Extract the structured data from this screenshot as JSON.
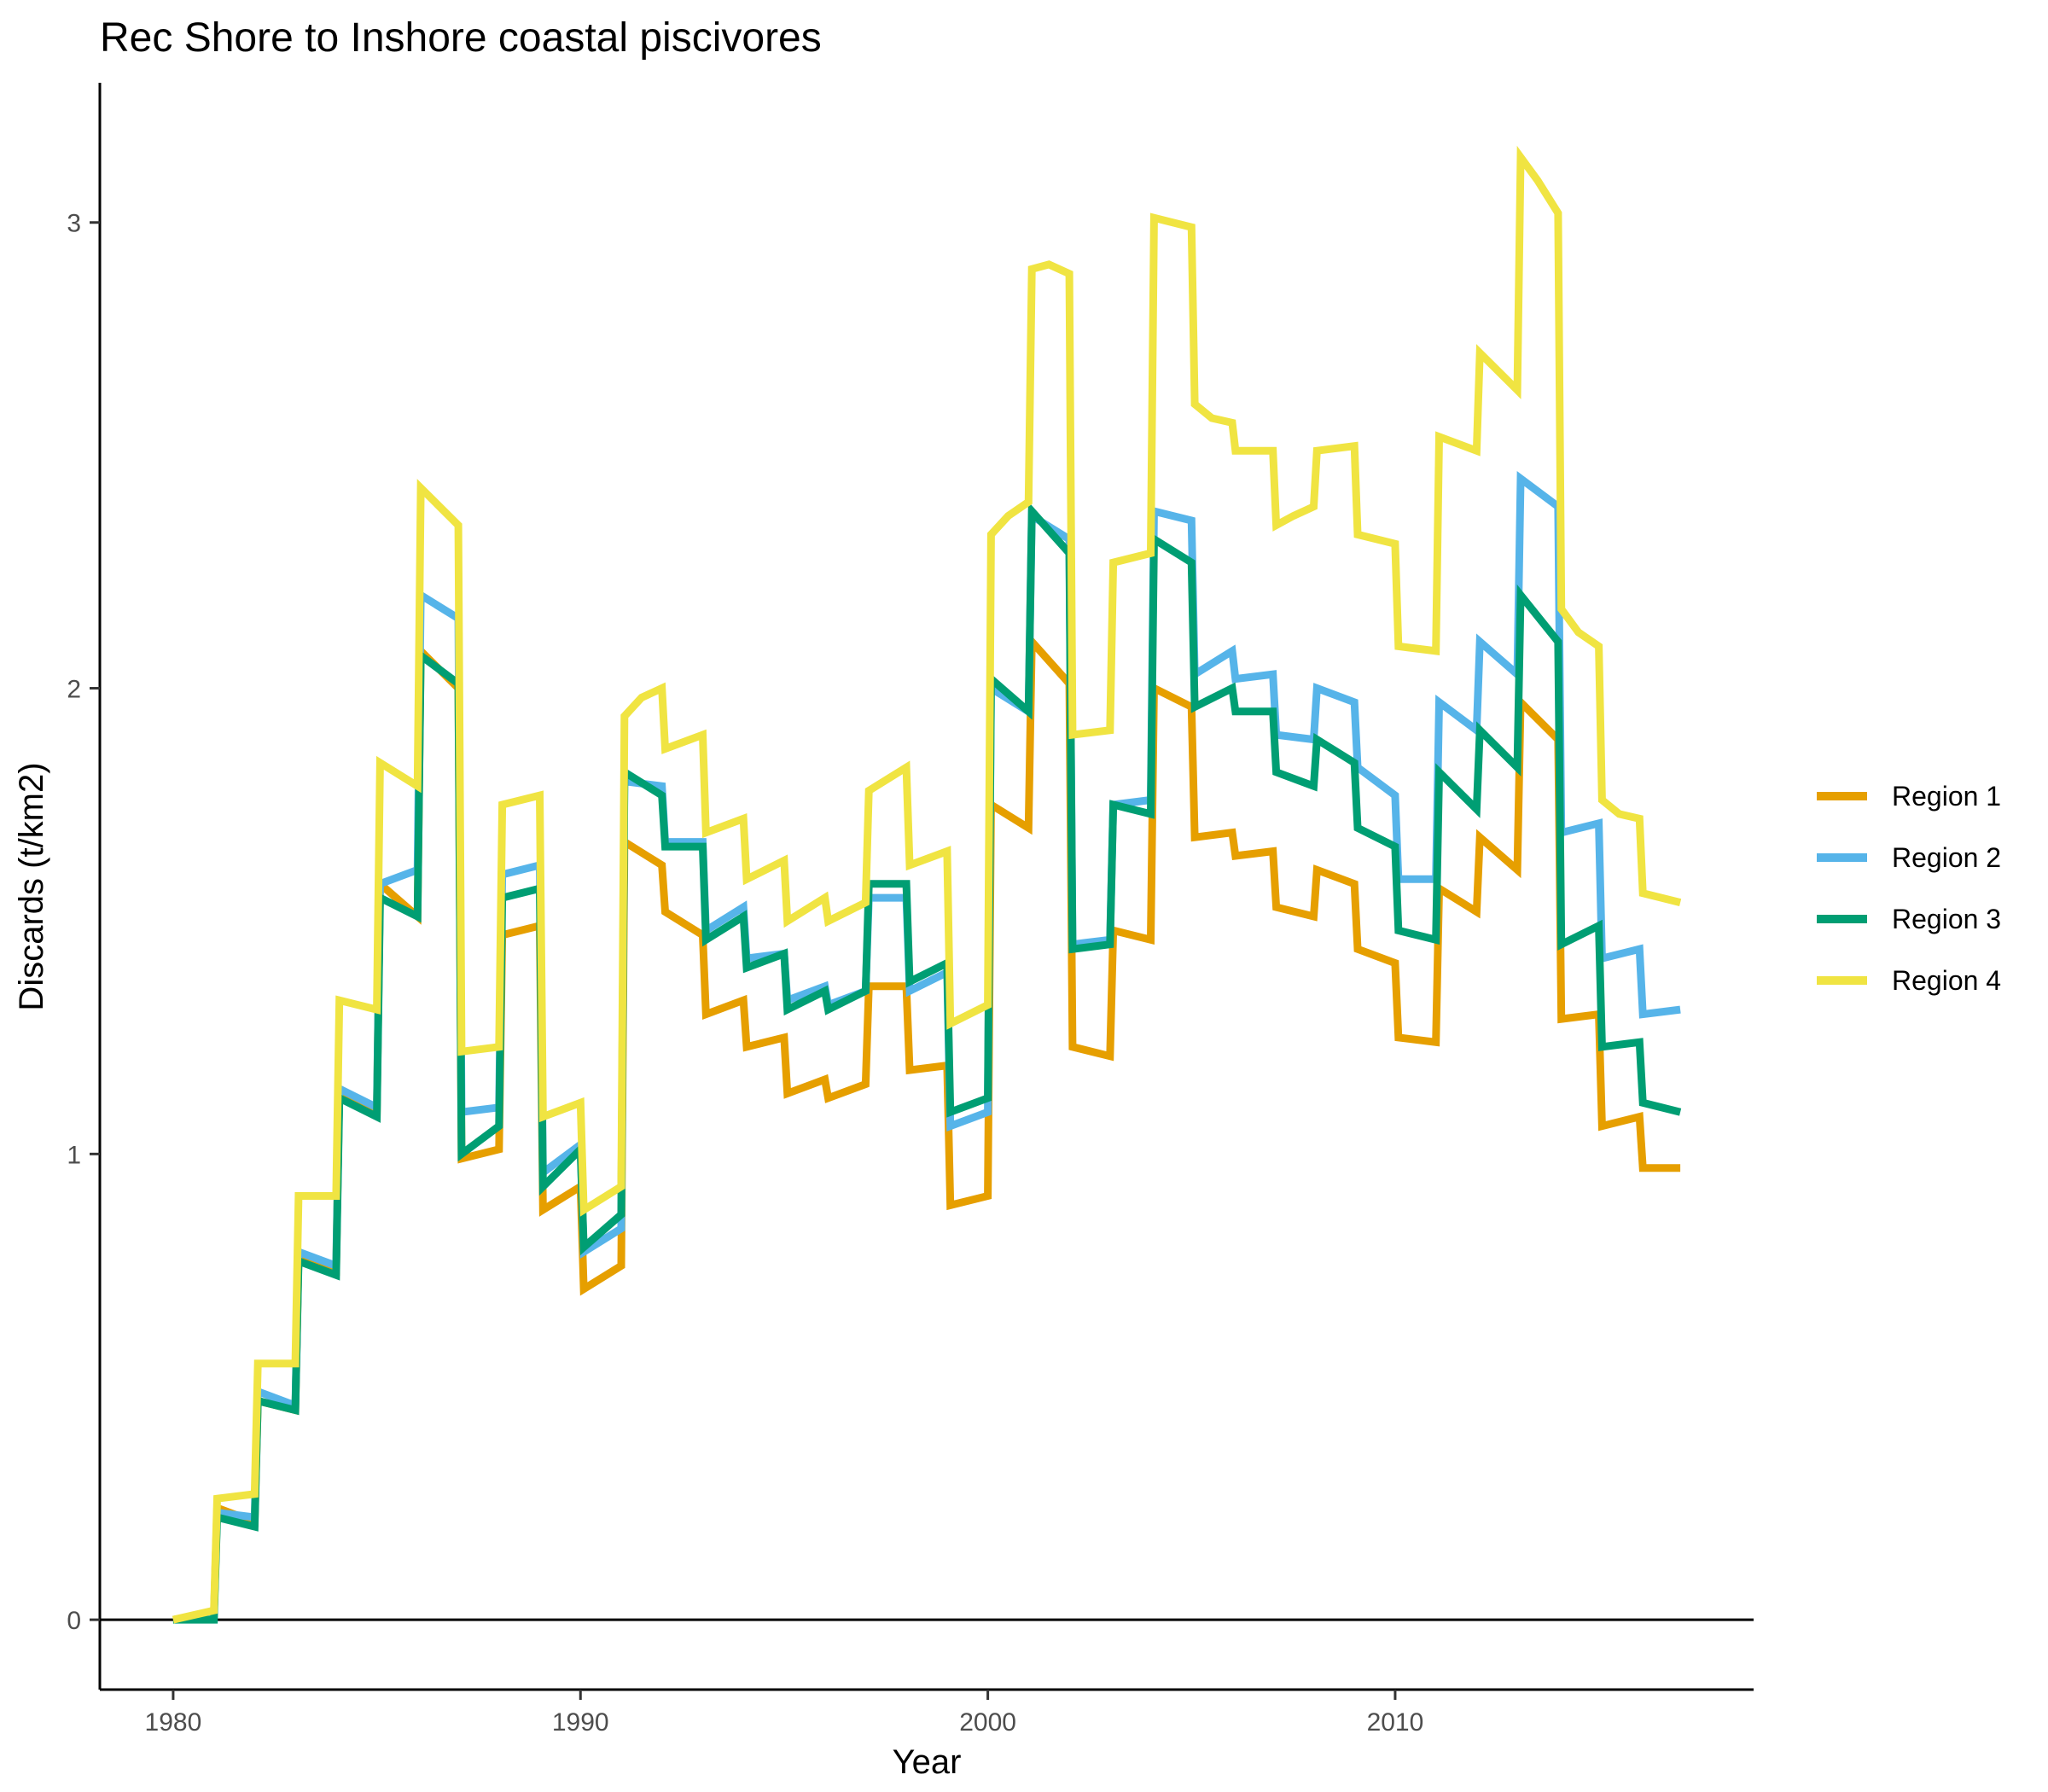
{
  "chart_data": {
    "type": "line",
    "title": "Rec Shore to Inshore coastal piscivores",
    "xlabel": "Year",
    "ylabel": "Discards (t/km2)",
    "xlim": [
      1978.2,
      2018.8
    ],
    "ylim": [
      -0.15,
      3.3
    ],
    "xticks": [
      1980,
      1990,
      2000,
      2010
    ],
    "yticks": [
      0,
      1,
      2,
      3
    ],
    "xtick_labels": [
      "1980",
      "1990",
      "2000",
      "2010"
    ],
    "ytick_labels": [
      "0",
      "1",
      "2",
      "3"
    ],
    "hline_y": 0,
    "grid": false,
    "legend_position": "right",
    "series": [
      {
        "name": "Region 1",
        "color": "#E69F00",
        "x": [
          1980.0,
          1981.0,
          1981.08,
          1982.0,
          1982.08,
          1983.0,
          1983.08,
          1984.0,
          1984.08,
          1985.0,
          1985.08,
          1986.0,
          1986.08,
          1987.0,
          1987.08,
          1988.0,
          1988.08,
          1989.0,
          1989.08,
          1990.0,
          1990.08,
          1991.0,
          1991.08,
          1992.0,
          1992.08,
          1993.0,
          1993.08,
          1994.0,
          1994.08,
          1995.0,
          1995.08,
          1996.0,
          1996.08,
          1997.0,
          1997.08,
          1998.0,
          1998.08,
          1999.0,
          1999.08,
          2000.0,
          2000.08,
          2001.0,
          2001.08,
          2002.0,
          2002.08,
          2003.0,
          2003.08,
          2004.0,
          2004.08,
          2005.0,
          2005.08,
          2006.0,
          2006.08,
          2007.0,
          2007.08,
          2008.0,
          2008.08,
          2009.0,
          2009.08,
          2010.0,
          2010.08,
          2011.0,
          2011.08,
          2012.0,
          2012.08,
          2013.0,
          2013.08,
          2014.0,
          2014.08,
          2015.0,
          2015.08,
          2016.0,
          2016.08,
          2017.0
        ],
        "y": [
          0.0,
          0.01,
          0.24,
          0.21,
          0.47,
          0.45,
          0.78,
          0.75,
          1.14,
          1.09,
          1.58,
          1.51,
          2.08,
          2.0,
          0.99,
          1.01,
          1.47,
          1.49,
          0.88,
          0.93,
          0.71,
          0.76,
          1.67,
          1.62,
          1.52,
          1.47,
          1.3,
          1.33,
          1.23,
          1.25,
          1.13,
          1.16,
          1.12,
          1.15,
          1.36,
          1.36,
          1.18,
          1.19,
          0.89,
          0.91,
          1.75,
          1.7,
          2.1,
          2.01,
          1.23,
          1.21,
          1.48,
          1.46,
          2.0,
          1.96,
          1.68,
          1.69,
          1.64,
          1.65,
          1.53,
          1.51,
          1.61,
          1.58,
          1.44,
          1.41,
          1.25,
          1.24,
          1.57,
          1.52,
          1.68,
          1.61,
          1.97,
          1.89,
          1.29,
          1.3,
          1.06,
          1.08,
          0.97,
          0.97
        ]
      },
      {
        "name": "Region 2",
        "color": "#56B4E9",
        "x": [
          1980.0,
          1981.0,
          1981.08,
          1982.0,
          1982.08,
          1983.0,
          1983.08,
          1984.0,
          1984.08,
          1985.0,
          1985.08,
          1986.0,
          1986.08,
          1987.0,
          1987.08,
          1988.0,
          1988.08,
          1989.0,
          1989.08,
          1990.0,
          1990.08,
          1991.0,
          1991.08,
          1992.0,
          1992.08,
          1993.0,
          1993.08,
          1994.0,
          1994.08,
          1995.0,
          1995.08,
          1996.0,
          1996.08,
          1997.0,
          1997.08,
          1998.0,
          1998.08,
          1999.0,
          1999.08,
          2000.0,
          2000.08,
          2001.0,
          2001.08,
          2002.0,
          2002.08,
          2003.0,
          2003.08,
          2004.0,
          2004.08,
          2005.0,
          2005.08,
          2006.0,
          2006.08,
          2007.0,
          2007.08,
          2008.0,
          2008.08,
          2009.0,
          2009.08,
          2010.0,
          2010.08,
          2011.0,
          2011.08,
          2012.0,
          2012.08,
          2013.0,
          2013.08,
          2014.0,
          2014.08,
          2015.0,
          2015.08,
          2016.0,
          2016.08,
          2017.0
        ],
        "y": [
          0.0,
          0.01,
          0.23,
          0.22,
          0.49,
          0.46,
          0.79,
          0.76,
          1.14,
          1.1,
          1.58,
          1.61,
          2.2,
          2.15,
          1.09,
          1.1,
          1.6,
          1.62,
          0.96,
          1.02,
          0.79,
          0.84,
          1.8,
          1.79,
          1.67,
          1.67,
          1.48,
          1.53,
          1.42,
          1.43,
          1.33,
          1.36,
          1.32,
          1.35,
          1.55,
          1.55,
          1.35,
          1.39,
          1.06,
          1.09,
          2.0,
          1.95,
          2.37,
          2.32,
          1.45,
          1.46,
          1.75,
          1.76,
          2.38,
          2.36,
          2.03,
          2.08,
          2.02,
          2.03,
          1.9,
          1.89,
          2.0,
          1.97,
          1.83,
          1.77,
          1.59,
          1.59,
          1.97,
          1.91,
          2.1,
          2.03,
          2.45,
          2.39,
          1.69,
          1.71,
          1.42,
          1.44,
          1.3,
          1.31
        ]
      },
      {
        "name": "Region 3",
        "color": "#009E73",
        "x": [
          1980.0,
          1981.0,
          1981.08,
          1982.0,
          1982.08,
          1983.0,
          1983.08,
          1984.0,
          1984.08,
          1985.0,
          1985.08,
          1986.0,
          1986.08,
          1987.0,
          1987.08,
          1988.0,
          1988.08,
          1989.0,
          1989.08,
          1990.0,
          1990.08,
          1991.0,
          1991.08,
          1992.0,
          1992.08,
          1993.0,
          1993.08,
          1994.0,
          1994.08,
          1995.0,
          1995.08,
          1996.0,
          1996.08,
          1997.0,
          1997.08,
          1998.0,
          1998.08,
          1999.0,
          1999.08,
          2000.0,
          2000.08,
          2001.0,
          2001.08,
          2002.0,
          2002.08,
          2003.0,
          2003.08,
          2004.0,
          2004.08,
          2005.0,
          2005.08,
          2006.0,
          2006.08,
          2007.0,
          2007.08,
          2008.0,
          2008.08,
          2009.0,
          2009.08,
          2010.0,
          2010.08,
          2011.0,
          2011.08,
          2012.0,
          2012.08,
          2013.0,
          2013.08,
          2014.0,
          2014.08,
          2015.0,
          2015.08,
          2016.0,
          2016.08,
          2017.0
        ],
        "y": [
          0.0,
          0.0,
          0.22,
          0.2,
          0.47,
          0.45,
          0.77,
          0.74,
          1.12,
          1.08,
          1.55,
          1.51,
          2.07,
          2.01,
          1.0,
          1.06,
          1.55,
          1.57,
          0.93,
          1.01,
          0.8,
          0.87,
          1.82,
          1.77,
          1.66,
          1.66,
          1.46,
          1.51,
          1.4,
          1.43,
          1.31,
          1.35,
          1.31,
          1.35,
          1.58,
          1.58,
          1.37,
          1.41,
          1.09,
          1.12,
          2.02,
          1.95,
          2.38,
          2.29,
          1.44,
          1.45,
          1.75,
          1.73,
          2.32,
          2.27,
          1.96,
          2.0,
          1.95,
          1.95,
          1.82,
          1.79,
          1.89,
          1.84,
          1.7,
          1.66,
          1.48,
          1.46,
          1.82,
          1.74,
          1.91,
          1.83,
          2.2,
          2.1,
          1.45,
          1.49,
          1.23,
          1.24,
          1.11,
          1.09
        ]
      },
      {
        "name": "Region 4",
        "color": "#F0E442",
        "x": [
          1980.0,
          1981.0,
          1981.08,
          1982.0,
          1982.08,
          1983.0,
          1983.08,
          1984.0,
          1984.08,
          1985.0,
          1985.08,
          1986.0,
          1986.08,
          1987.0,
          1987.08,
          1988.0,
          1988.08,
          1989.0,
          1989.08,
          1990.0,
          1990.08,
          1991.0,
          1991.08,
          1991.5,
          1992.0,
          1992.08,
          1993.0,
          1993.08,
          1994.0,
          1994.08,
          1995.0,
          1995.08,
          1996.0,
          1996.08,
          1997.0,
          1997.08,
          1998.0,
          1998.08,
          1999.0,
          1999.08,
          2000.0,
          2000.08,
          2000.5,
          2001.0,
          2001.08,
          2001.5,
          2002.0,
          2002.08,
          2003.0,
          2003.08,
          2004.0,
          2004.08,
          2005.0,
          2005.08,
          2005.5,
          2006.0,
          2006.08,
          2007.0,
          2007.08,
          2007.5,
          2008.0,
          2008.08,
          2009.0,
          2009.08,
          2010.0,
          2010.08,
          2011.0,
          2011.08,
          2012.0,
          2012.08,
          2013.0,
          2013.08,
          2013.5,
          2014.0,
          2014.08,
          2014.5,
          2015.0,
          2015.08,
          2015.5,
          2016.0,
          2016.08,
          2017.0
        ],
        "y": [
          0.0,
          0.02,
          0.26,
          0.27,
          0.55,
          0.55,
          0.91,
          0.91,
          1.33,
          1.31,
          1.84,
          1.79,
          2.43,
          2.35,
          1.22,
          1.23,
          1.75,
          1.77,
          1.08,
          1.11,
          0.88,
          0.93,
          1.94,
          1.98,
          2.0,
          1.87,
          1.9,
          1.69,
          1.72,
          1.59,
          1.63,
          1.5,
          1.55,
          1.5,
          1.54,
          1.78,
          1.83,
          1.62,
          1.65,
          1.28,
          1.32,
          2.33,
          2.37,
          2.4,
          2.9,
          2.91,
          2.89,
          1.9,
          1.91,
          2.27,
          2.29,
          3.01,
          2.99,
          2.61,
          2.58,
          2.57,
          2.51,
          2.51,
          2.35,
          2.37,
          2.39,
          2.51,
          2.52,
          2.33,
          2.31,
          2.09,
          2.08,
          2.54,
          2.51,
          2.72,
          2.64,
          3.14,
          3.09,
          3.02,
          2.17,
          2.12,
          2.09,
          1.76,
          1.73,
          1.72,
          1.56,
          1.54
        ]
      }
    ]
  }
}
